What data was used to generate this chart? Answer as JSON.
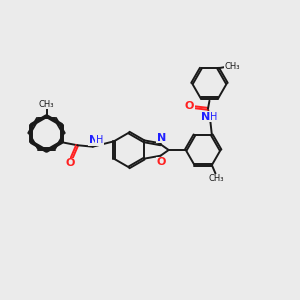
{
  "bg_color": "#ebebeb",
  "bond_color": "#1a1a1a",
  "N_color": "#2020ff",
  "O_color": "#ff2020",
  "lw": 1.4,
  "dbo": 0.032,
  "fig_w": 3.0,
  "fig_h": 3.0,
  "dpi": 100,
  "xlim": [
    0,
    10
  ],
  "ylim": [
    0,
    10
  ],
  "hex_r": 0.58
}
